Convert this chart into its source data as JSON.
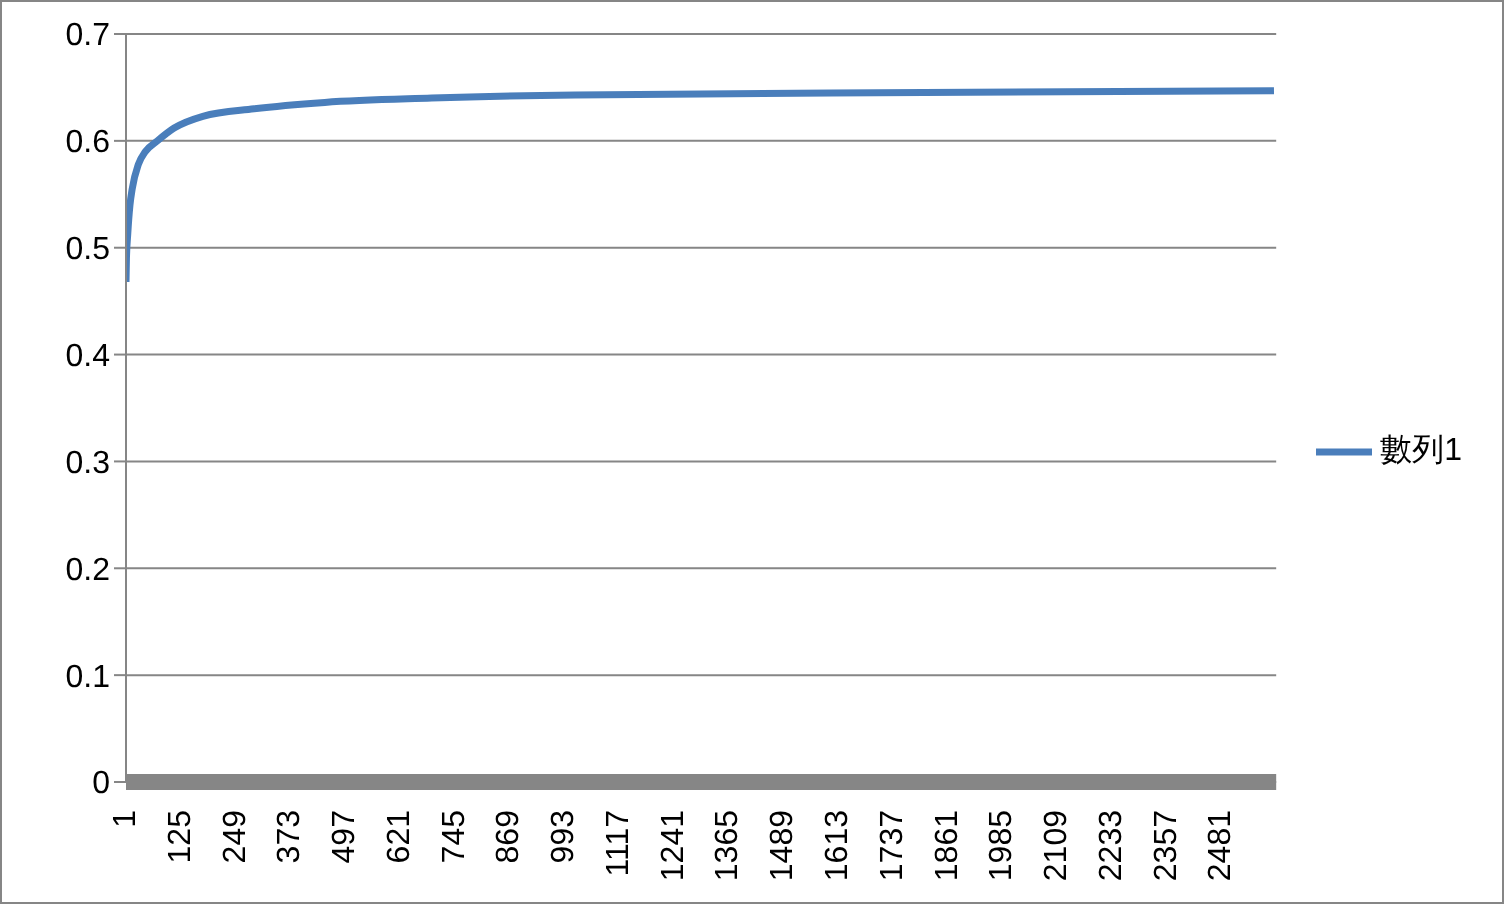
{
  "chart_data": {
    "type": "line",
    "x": [
      1,
      2,
      5,
      10,
      15,
      29,
      45,
      72,
      110,
      175,
      291,
      451,
      693,
      1018,
      1700,
      2600
    ],
    "series": [
      {
        "name": "數列1",
        "color": "#4a7ebb",
        "values": [
          0.468,
          0.49,
          0.513,
          0.54,
          0.555,
          0.578,
          0.59,
          0.6,
          0.612,
          0.623,
          0.63,
          0.636,
          0.64,
          0.643,
          0.645,
          0.647
        ]
      }
    ],
    "xlim": [
      1,
      2605
    ],
    "xticks": [
      1,
      125,
      249,
      373,
      497,
      621,
      745,
      869,
      993,
      1117,
      1241,
      1365,
      1489,
      1613,
      1737,
      1861,
      1985,
      2109,
      2233,
      2357,
      2481
    ],
    "ylim": [
      0,
      0.7
    ],
    "yticks": [
      0,
      0.1,
      0.2,
      0.3,
      0.4,
      0.5,
      0.6,
      0.7
    ],
    "grid": "y",
    "legend": "right",
    "marker": "none",
    "line_style": "solid"
  }
}
